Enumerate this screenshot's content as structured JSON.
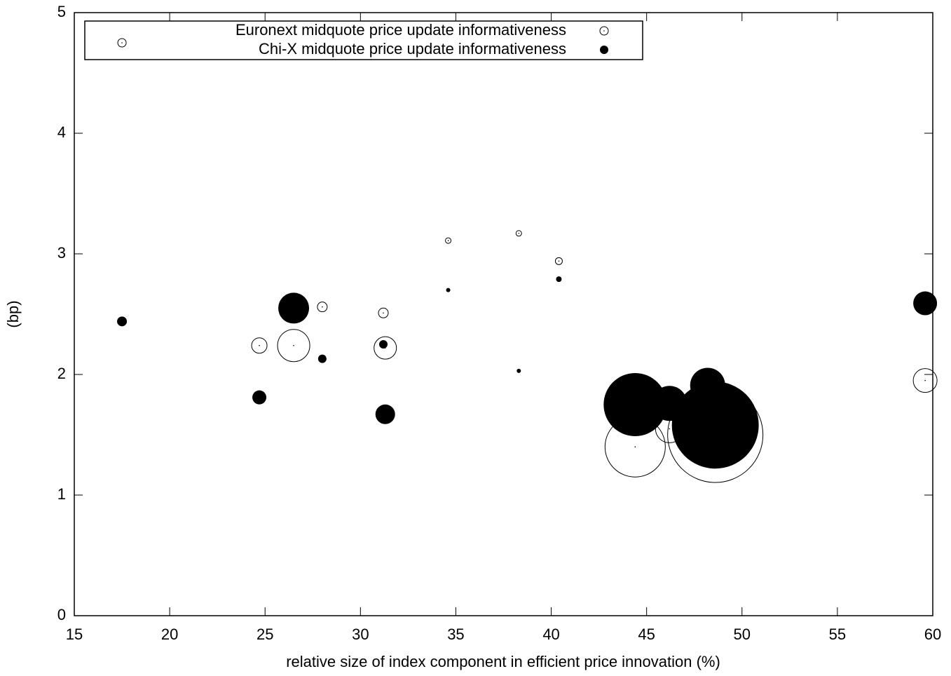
{
  "chart_data": {
    "type": "scatter",
    "x_label": "relative size of index component in efficient price innovation (%)",
    "y_label": "(bp)",
    "xlim": [
      15,
      60
    ],
    "ylim": [
      0,
      5
    ],
    "xticks": [
      15,
      20,
      25,
      30,
      35,
      40,
      45,
      50,
      55,
      60
    ],
    "yticks": [
      0,
      1,
      2,
      3,
      4,
      5
    ],
    "legend": "top-left",
    "series": [
      {
        "name": "Euronext midquote price update informativeness",
        "style": "open",
        "color": "#000000",
        "x": [
          17.5,
          24.7,
          26.5,
          28.0,
          31.2,
          31.3,
          34.6,
          38.3,
          40.4,
          44.4,
          46.2,
          48.6,
          59.6
        ],
        "values": [
          4.75,
          2.24,
          2.24,
          2.56,
          2.51,
          2.22,
          3.11,
          3.17,
          2.94,
          1.4,
          1.55,
          1.5,
          1.95
        ],
        "sizes": [
          6,
          11,
          23,
          7,
          7,
          16,
          4,
          4,
          5,
          43,
          20,
          68,
          17
        ]
      },
      {
        "name": "Chi-X midquote price update informativeness",
        "style": "filled",
        "color": "#000000",
        "x": [
          17.5,
          24.7,
          26.5,
          28.0,
          31.2,
          31.3,
          34.6,
          38.3,
          40.4,
          44.4,
          46.2,
          48.2,
          48.6,
          59.6
        ],
        "values": [
          2.44,
          1.81,
          2.55,
          2.13,
          2.25,
          1.67,
          2.7,
          2.03,
          2.79,
          1.75,
          1.76,
          1.91,
          1.58,
          2.59
        ],
        "sizes": [
          7,
          10,
          22,
          6,
          6,
          14,
          3,
          3,
          4,
          45,
          25,
          25,
          62,
          17
        ]
      }
    ]
  }
}
